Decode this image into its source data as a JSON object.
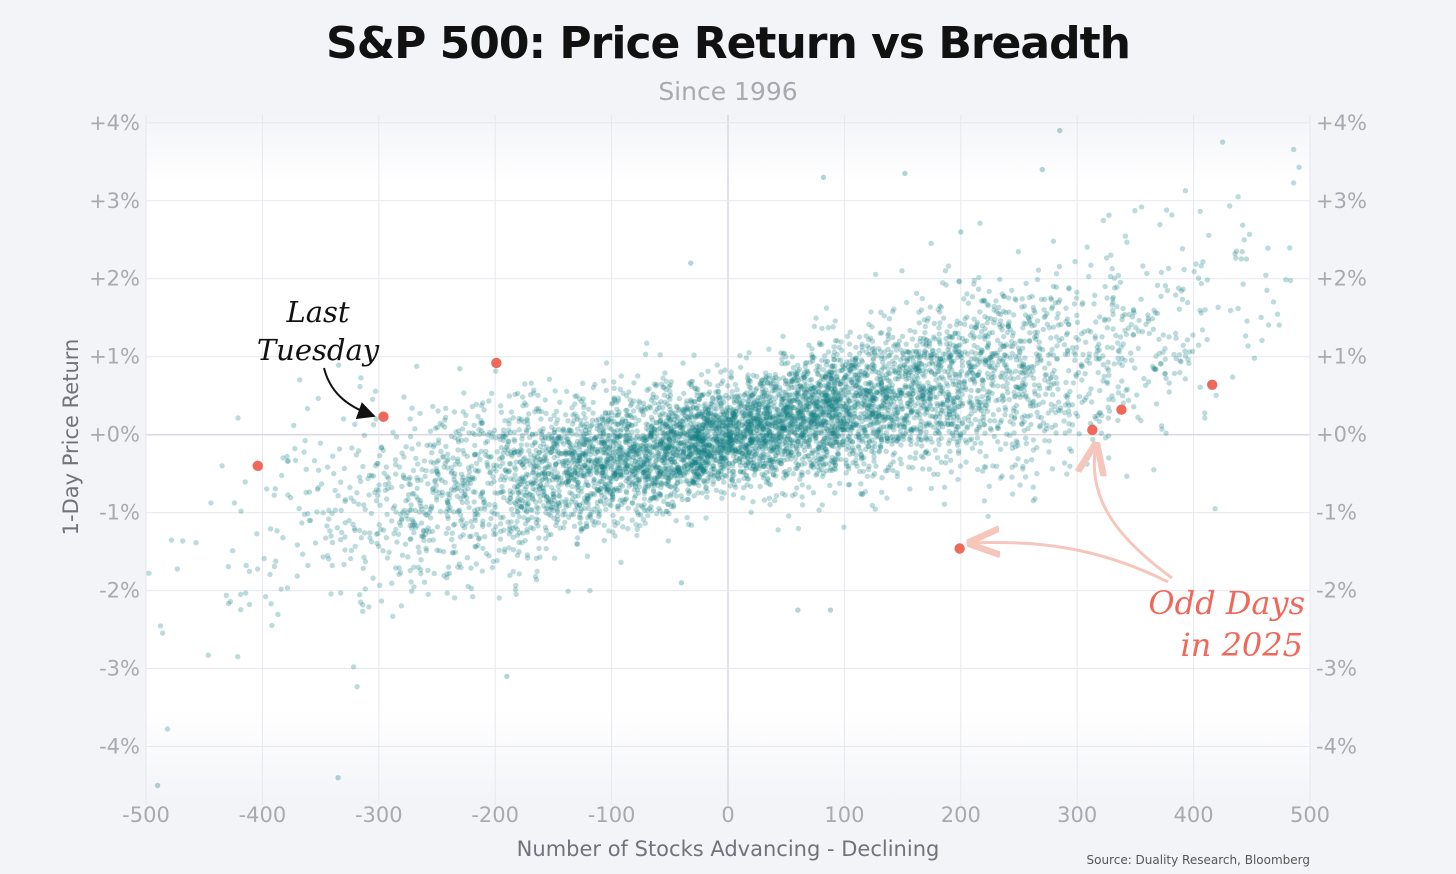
{
  "chart_data": {
    "type": "scatter",
    "title": "S&P 500: Price Return vs Breadth",
    "subtitle": "Since 1996",
    "xlabel": "Number of Stocks Advancing - Declining",
    "ylabel": "1-Day Price Return",
    "xlim": [
      -500,
      500
    ],
    "ylim": [
      -4.75,
      4.1
    ],
    "x_ticks": [
      -500,
      -400,
      -300,
      -200,
      -100,
      0,
      100,
      200,
      300,
      400,
      500
    ],
    "x_tick_labels": [
      "-500",
      "-400",
      "-300",
      "-200",
      "-100",
      "0",
      "100",
      "200",
      "300",
      "400",
      "500"
    ],
    "y_ticks": [
      4,
      3,
      2,
      1,
      0,
      -1,
      -2,
      -3,
      -4
    ],
    "y_tick_labels": [
      "+4%",
      "+3%",
      "+2%",
      "+1%",
      "+0%",
      "-1%",
      "-2%",
      "-3%",
      "-4%"
    ],
    "grid": true,
    "series": [
      {
        "role": "all-days",
        "color": "#137d82",
        "sample_points": 6500,
        "trend": {
          "slope_per_stock": 0.0032,
          "noise_base": 0.32,
          "noise_scale": 0.55
        },
        "notable_outliers": [
          {
            "x": 200,
            "y": 2.6
          },
          {
            "x": 152,
            "y": 3.35
          },
          {
            "x": 82,
            "y": 3.3
          },
          {
            "x": 285,
            "y": 3.9
          },
          {
            "x": -32,
            "y": 2.2
          },
          {
            "x": 60,
            "y": -2.25
          },
          {
            "x": 88,
            "y": -2.25
          },
          {
            "x": -190,
            "y": -3.1
          },
          {
            "x": -40,
            "y": -1.9
          },
          {
            "x": -335,
            "y": -4.4
          },
          {
            "x": 270,
            "y": 3.4
          },
          {
            "x": -490,
            "y": -4.5
          }
        ]
      },
      {
        "role": "odd-days-2025",
        "color": "#f0685a",
        "points": [
          {
            "x": -404,
            "y": -0.4
          },
          {
            "x": -296,
            "y": 0.23
          },
          {
            "x": -199,
            "y": 0.92
          },
          {
            "x": 199,
            "y": -1.46
          },
          {
            "x": 313,
            "y": 0.06
          },
          {
            "x": 338,
            "y": 0.32
          },
          {
            "x": 416,
            "y": 0.64
          }
        ]
      }
    ],
    "annotations": [
      {
        "lines": [
          "Last",
          "Tuesday"
        ],
        "target": {
          "x": -296,
          "y": 0.23
        },
        "color": "#111111"
      },
      {
        "lines": [
          "Odd Days",
          "in 2025"
        ],
        "targets": [
          {
            "x": 199,
            "y": -1.46
          },
          {
            "x": 313,
            "y": 0.06
          }
        ],
        "color": "#f0685a"
      }
    ]
  },
  "source": "Source: Duality Research, Bloomberg",
  "colors": {
    "background": "#f3f4f8",
    "plot_background": "#ffffff",
    "grid": "#e6e8ee",
    "tick_label": "#a7aab1",
    "axis_label": "#6f737b"
  }
}
